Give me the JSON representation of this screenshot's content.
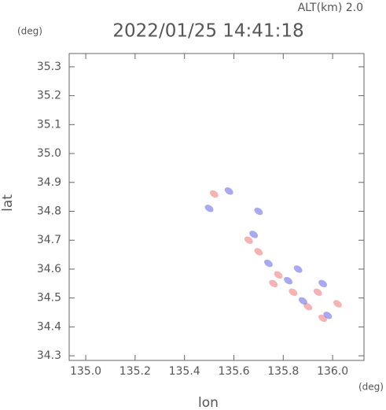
{
  "chart_data": {
    "type": "scatter",
    "title": "2022/01/25 14:41:18",
    "subtitle": "ALT(km) 2.0",
    "y_unit": "(deg)",
    "x_unit": "(deg)",
    "x_label": "lon",
    "y_label": "lat",
    "xlim": [
      134.933,
      136.127
    ],
    "ylim": [
      34.284,
      35.346
    ],
    "xticks": [
      {
        "value": 135.0,
        "label": "135.0"
      },
      135.2,
      135.4,
      135.6,
      135.8,
      {
        "value": 136.0,
        "label": "136.0"
      }
    ],
    "yticks": [
      35.3,
      35.2,
      35.1,
      {
        "value": 35.0,
        "label": "35.0"
      },
      34.9,
      34.8,
      34.7,
      34.6,
      34.5,
      34.4,
      34.3
    ],
    "series": [
      {
        "color": "#f08080",
        "x": [
          135.52,
          135.66,
          135.7,
          135.78,
          135.84,
          135.9,
          135.96,
          136.02,
          135.94,
          135.76
        ],
        "values": [
          34.86,
          34.7,
          34.66,
          34.58,
          34.52,
          34.47,
          34.43,
          34.48,
          34.52,
          34.55
        ]
      },
      {
        "color": "#7070e8",
        "x": [
          135.5,
          135.58,
          135.7,
          135.68,
          135.74,
          135.86,
          135.96,
          135.98,
          135.88,
          135.82
        ],
        "values": [
          34.81,
          34.87,
          34.8,
          34.72,
          34.62,
          34.6,
          34.55,
          34.44,
          34.49,
          34.56
        ]
      }
    ]
  }
}
